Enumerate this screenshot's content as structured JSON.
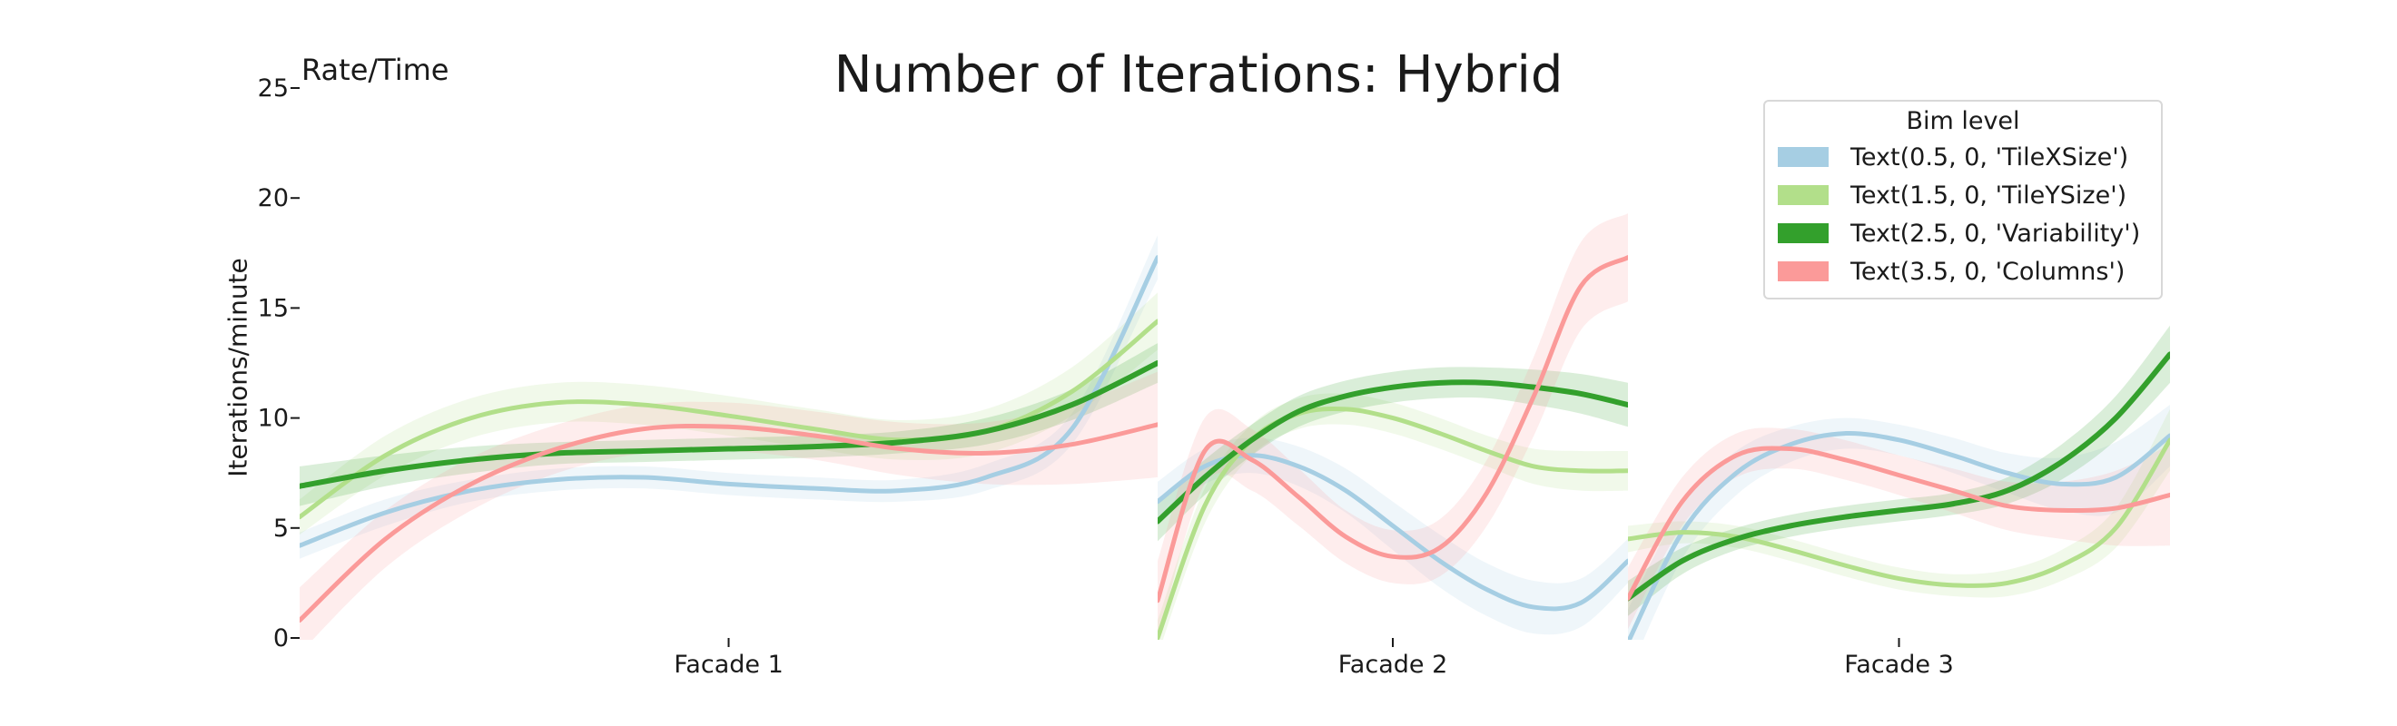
{
  "chart_data": {
    "type": "line",
    "title": "Number of Iterations: Hybrid",
    "corner_label": "Rate/Time",
    "ylabel": "Iterations/minute",
    "ylim": [
      0,
      25
    ],
    "yticks": [
      "0",
      "5",
      "10",
      "15",
      "20",
      "25"
    ],
    "legend": {
      "title": "Bim level",
      "placement": "top-right"
    },
    "grid": false,
    "panels": [
      {
        "name": "Facade 1",
        "x": [
          0,
          0.1,
          0.2,
          0.3,
          0.4,
          0.5,
          0.6,
          0.7,
          0.8,
          0.9,
          1.0
        ]
      },
      {
        "name": "Facade 2",
        "x": [
          0,
          0.1,
          0.2,
          0.3,
          0.4,
          0.5,
          0.6,
          0.7,
          0.8,
          0.9,
          1.0
        ]
      },
      {
        "name": "Facade 3",
        "x": [
          0,
          0.1,
          0.2,
          0.3,
          0.4,
          0.5,
          0.6,
          0.7,
          0.8,
          0.9,
          1.0
        ]
      }
    ],
    "series": [
      {
        "name": "Text(0.5, 0, 'TileXSize')",
        "color": "#a6cee3",
        "values": [
          [
            4.2,
            5.7,
            6.7,
            7.2,
            7.3,
            7.0,
            6.8,
            6.7,
            7.3,
            9.5,
            17.3
          ],
          [
            6.2,
            7.8,
            8.3,
            7.8,
            6.7,
            5.1,
            3.5,
            2.2,
            1.4,
            1.6,
            3.5
          ],
          [
            -0.2,
            4.8,
            7.5,
            8.8,
            9.3,
            9.0,
            8.3,
            7.5,
            7.0,
            7.3,
            9.2
          ]
        ],
        "band": [
          [
            0.6,
            0.6,
            0.5,
            0.5,
            0.5,
            0.5,
            0.5,
            0.5,
            0.6,
            0.7,
            1.0
          ],
          [
            0.9,
            0.8,
            0.8,
            0.9,
            1.0,
            1.1,
            1.2,
            1.2,
            1.2,
            1.1,
            1.0
          ],
          [
            1.5,
            1.2,
            1.0,
            0.8,
            0.7,
            0.7,
            0.8,
            0.9,
            1.2,
            1.6,
            1.4
          ]
        ]
      },
      {
        "name": "Text(1.5, 0, 'TileYSize')",
        "color": "#b2df8a",
        "values": [
          [
            5.5,
            8.3,
            10.0,
            10.7,
            10.6,
            10.1,
            9.5,
            9.0,
            9.4,
            11.2,
            14.4
          ],
          [
            0.0,
            6.0,
            9.0,
            10.2,
            10.4,
            10.0,
            9.3,
            8.5,
            7.8,
            7.6,
            7.6
          ],
          [
            4.5,
            4.8,
            4.6,
            4.0,
            3.3,
            2.7,
            2.4,
            2.5,
            3.3,
            5.0,
            9.0
          ]
        ],
        "band": [
          [
            0.8,
            0.9,
            0.9,
            0.9,
            0.9,
            0.9,
            0.9,
            0.9,
            1.0,
            1.1,
            1.3
          ],
          [
            0.8,
            0.8,
            0.7,
            0.7,
            0.7,
            0.7,
            0.7,
            0.7,
            0.8,
            0.9,
            0.9
          ],
          [
            0.6,
            0.5,
            0.5,
            0.5,
            0.5,
            0.5,
            0.5,
            0.6,
            0.7,
            0.9,
            1.4
          ]
        ]
      },
      {
        "name": "Text(2.5, 0, 'Variability')",
        "color": "#33a02c",
        "values": [
          [
            6.9,
            7.6,
            8.1,
            8.4,
            8.5,
            8.6,
            8.7,
            8.9,
            9.4,
            10.6,
            12.5
          ],
          [
            5.3,
            7.3,
            9.0,
            10.3,
            11.0,
            11.4,
            11.6,
            11.6,
            11.4,
            11.1,
            10.6
          ],
          [
            1.8,
            3.5,
            4.5,
            5.1,
            5.5,
            5.8,
            6.1,
            6.7,
            8.0,
            10.0,
            12.9
          ]
        ],
        "band": [
          [
            0.9,
            0.7,
            0.6,
            0.5,
            0.5,
            0.5,
            0.5,
            0.5,
            0.6,
            0.7,
            0.9
          ],
          [
            0.9,
            0.8,
            0.7,
            0.7,
            0.7,
            0.7,
            0.7,
            0.7,
            0.8,
            0.9,
            1.0
          ],
          [
            0.8,
            0.6,
            0.5,
            0.5,
            0.5,
            0.5,
            0.5,
            0.6,
            0.8,
            1.0,
            1.3
          ]
        ]
      },
      {
        "name": "Text(3.5, 0, 'Columns')",
        "color": "#fb9a99",
        "values": [
          [
            0.8,
            4.5,
            7.0,
            8.6,
            9.5,
            9.6,
            9.2,
            8.6,
            8.4,
            8.8,
            9.7
          ],
          [
            1.7,
            8.5,
            8.1,
            6.4,
            4.6,
            3.7,
            4.1,
            6.6,
            11.0,
            16.0,
            17.3
          ],
          [
            1.8,
            6.2,
            8.3,
            8.6,
            8.1,
            7.4,
            6.7,
            6.0,
            5.8,
            5.9,
            6.5
          ]
        ],
        "band": [
          [
            1.5,
            1.3,
            1.2,
            1.1,
            1.1,
            1.1,
            1.1,
            1.2,
            1.4,
            1.8,
            2.4
          ],
          [
            1.8,
            1.5,
            1.4,
            1.3,
            1.2,
            1.2,
            1.3,
            1.5,
            1.8,
            2.0,
            2.0
          ],
          [
            1.4,
            1.1,
            1.0,
            0.9,
            0.9,
            0.9,
            1.0,
            1.1,
            1.3,
            1.7,
            2.3
          ]
        ]
      }
    ]
  }
}
